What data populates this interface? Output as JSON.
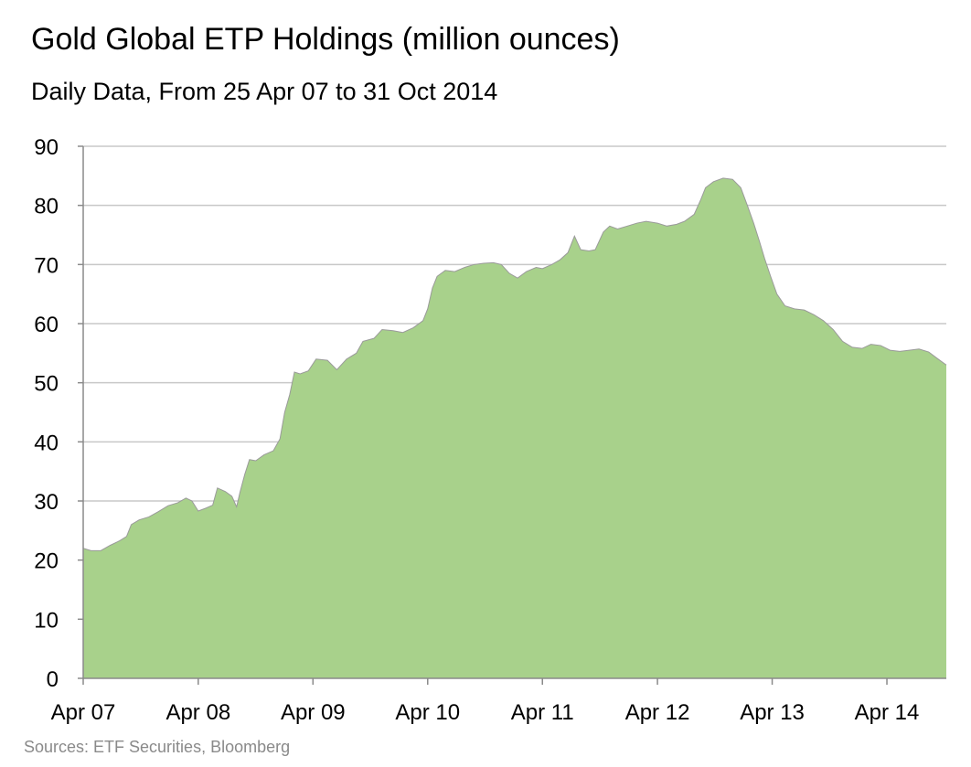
{
  "chart_data": {
    "type": "area",
    "title": "Gold Global ETP Holdings (million ounces)",
    "subtitle": "Daily Data, From 25 Apr 07 to 31 Oct 2014",
    "xlabel": "",
    "ylabel": "",
    "source": "Sources: ETF Securities, Bloomberg",
    "ylim": [
      0,
      90
    ],
    "yticks": [
      0,
      10,
      20,
      30,
      40,
      50,
      60,
      70,
      80,
      90
    ],
    "xlim": [
      "2007-04-25",
      "2014-10-31"
    ],
    "xticks": [
      {
        "date": "2007-04-25",
        "label": "Apr 07"
      },
      {
        "date": "2008-04-25",
        "label": "Apr 08"
      },
      {
        "date": "2009-04-25",
        "label": "Apr 09"
      },
      {
        "date": "2010-04-25",
        "label": "Apr 10"
      },
      {
        "date": "2011-04-25",
        "label": "Apr 11"
      },
      {
        "date": "2012-04-25",
        "label": "Apr 12"
      },
      {
        "date": "2013-04-25",
        "label": "Apr 13"
      },
      {
        "date": "2014-04-25",
        "label": "Apr 14"
      }
    ],
    "grid": true,
    "fill_color": "#a8d18b",
    "edge_color": "#9a9a9a",
    "series": [
      {
        "values": [
          [
            "2007-04-25",
            22.0
          ],
          [
            "2007-05-20",
            21.6
          ],
          [
            "2007-06-20",
            21.6
          ],
          [
            "2007-07-20",
            22.5
          ],
          [
            "2007-08-20",
            23.3
          ],
          [
            "2007-09-10",
            24.0
          ],
          [
            "2007-09-25",
            26.0
          ],
          [
            "2007-10-20",
            26.8
          ],
          [
            "2007-11-20",
            27.3
          ],
          [
            "2007-12-20",
            28.2
          ],
          [
            "2008-01-20",
            29.2
          ],
          [
            "2008-02-20",
            29.7
          ],
          [
            "2008-03-17",
            30.5
          ],
          [
            "2008-04-05",
            30.0
          ],
          [
            "2008-04-25",
            28.3
          ],
          [
            "2008-05-20",
            28.8
          ],
          [
            "2008-06-10",
            29.3
          ],
          [
            "2008-06-25",
            32.2
          ],
          [
            "2008-07-20",
            31.6
          ],
          [
            "2008-08-10",
            30.8
          ],
          [
            "2008-08-25",
            29.0
          ],
          [
            "2008-09-05",
            31.5
          ],
          [
            "2008-09-20",
            34.5
          ],
          [
            "2008-10-05",
            37.0
          ],
          [
            "2008-10-25",
            36.8
          ],
          [
            "2008-11-20",
            37.8
          ],
          [
            "2008-12-20",
            38.5
          ],
          [
            "2009-01-10",
            40.5
          ],
          [
            "2009-01-25",
            45.0
          ],
          [
            "2009-02-10",
            48.0
          ],
          [
            "2009-02-25",
            51.8
          ],
          [
            "2009-03-15",
            51.5
          ],
          [
            "2009-04-10",
            52.0
          ],
          [
            "2009-05-05",
            54.0
          ],
          [
            "2009-06-10",
            53.8
          ],
          [
            "2009-07-10",
            52.2
          ],
          [
            "2009-08-10",
            54.0
          ],
          [
            "2009-09-10",
            55.0
          ],
          [
            "2009-10-01",
            57.0
          ],
          [
            "2009-11-05",
            57.5
          ],
          [
            "2009-12-01",
            59.0
          ],
          [
            "2010-01-05",
            58.8
          ],
          [
            "2010-02-05",
            58.5
          ],
          [
            "2010-03-10",
            59.3
          ],
          [
            "2010-04-10",
            60.5
          ],
          [
            "2010-04-25",
            62.5
          ],
          [
            "2010-05-10",
            66.0
          ],
          [
            "2010-05-25",
            68.0
          ],
          [
            "2010-06-20",
            69.0
          ],
          [
            "2010-07-20",
            68.8
          ],
          [
            "2010-08-20",
            69.5
          ],
          [
            "2010-09-20",
            70.0
          ],
          [
            "2010-10-20",
            70.2
          ],
          [
            "2010-11-20",
            70.3
          ],
          [
            "2010-12-15",
            70.0
          ],
          [
            "2011-01-10",
            68.5
          ],
          [
            "2011-02-05",
            67.7
          ],
          [
            "2011-03-05",
            68.8
          ],
          [
            "2011-04-05",
            69.5
          ],
          [
            "2011-04-25",
            69.3
          ],
          [
            "2011-05-25",
            70.0
          ],
          [
            "2011-06-20",
            70.8
          ],
          [
            "2011-07-15",
            72.0
          ],
          [
            "2011-08-05",
            74.8
          ],
          [
            "2011-08-25",
            72.5
          ],
          [
            "2011-09-20",
            72.3
          ],
          [
            "2011-10-10",
            72.5
          ],
          [
            "2011-11-05",
            75.5
          ],
          [
            "2011-11-25",
            76.5
          ],
          [
            "2011-12-20",
            76.0
          ],
          [
            "2012-01-20",
            76.5
          ],
          [
            "2012-02-20",
            77.0
          ],
          [
            "2012-03-20",
            77.3
          ],
          [
            "2012-04-25",
            77.0
          ],
          [
            "2012-05-25",
            76.5
          ],
          [
            "2012-06-25",
            76.8
          ],
          [
            "2012-07-20",
            77.3
          ],
          [
            "2012-08-20",
            78.5
          ],
          [
            "2012-09-10",
            81.0
          ],
          [
            "2012-09-25",
            83.0
          ],
          [
            "2012-10-20",
            84.0
          ],
          [
            "2012-11-20",
            84.6
          ],
          [
            "2012-12-20",
            84.4
          ],
          [
            "2013-01-15",
            83.0
          ],
          [
            "2013-02-05",
            80.0
          ],
          [
            "2013-02-25",
            77.0
          ],
          [
            "2013-03-15",
            74.0
          ],
          [
            "2013-04-01",
            71.0
          ],
          [
            "2013-04-20",
            68.0
          ],
          [
            "2013-05-10",
            65.0
          ],
          [
            "2013-06-05",
            63.0
          ],
          [
            "2013-07-05",
            62.5
          ],
          [
            "2013-08-05",
            62.3
          ],
          [
            "2013-09-05",
            61.5
          ],
          [
            "2013-10-05",
            60.5
          ],
          [
            "2013-11-05",
            59.0
          ],
          [
            "2013-12-05",
            57.0
          ],
          [
            "2014-01-05",
            56.0
          ],
          [
            "2014-02-05",
            55.8
          ],
          [
            "2014-03-05",
            56.5
          ],
          [
            "2014-04-05",
            56.3
          ],
          [
            "2014-05-05",
            55.5
          ],
          [
            "2014-06-05",
            55.3
          ],
          [
            "2014-07-05",
            55.5
          ],
          [
            "2014-08-05",
            55.7
          ],
          [
            "2014-09-05",
            55.2
          ],
          [
            "2014-10-05",
            54.0
          ],
          [
            "2014-10-31",
            53.0
          ]
        ]
      }
    ]
  }
}
